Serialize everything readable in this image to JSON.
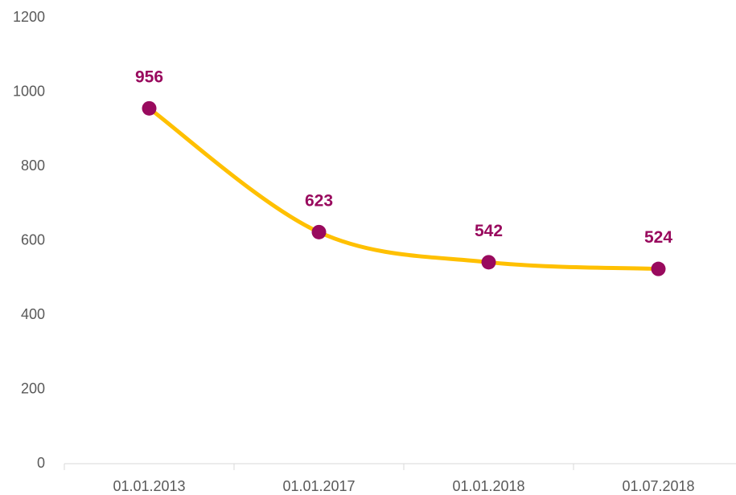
{
  "chart_data": {
    "type": "line",
    "categories": [
      "01.01.2013",
      "01.01.2017",
      "01.01.2018",
      "01.07.2018"
    ],
    "series": [
      {
        "name": "",
        "color": "#ffc000",
        "marker_color": "#990a5e",
        "values": [
          956,
          623,
          542,
          524
        ]
      }
    ],
    "ylim": [
      0,
      1200
    ],
    "yticks": [
      0,
      200,
      400,
      600,
      800,
      1000,
      1200
    ],
    "smooth": true,
    "grid": false,
    "data_labels": true,
    "label_color": "#990a5e"
  }
}
